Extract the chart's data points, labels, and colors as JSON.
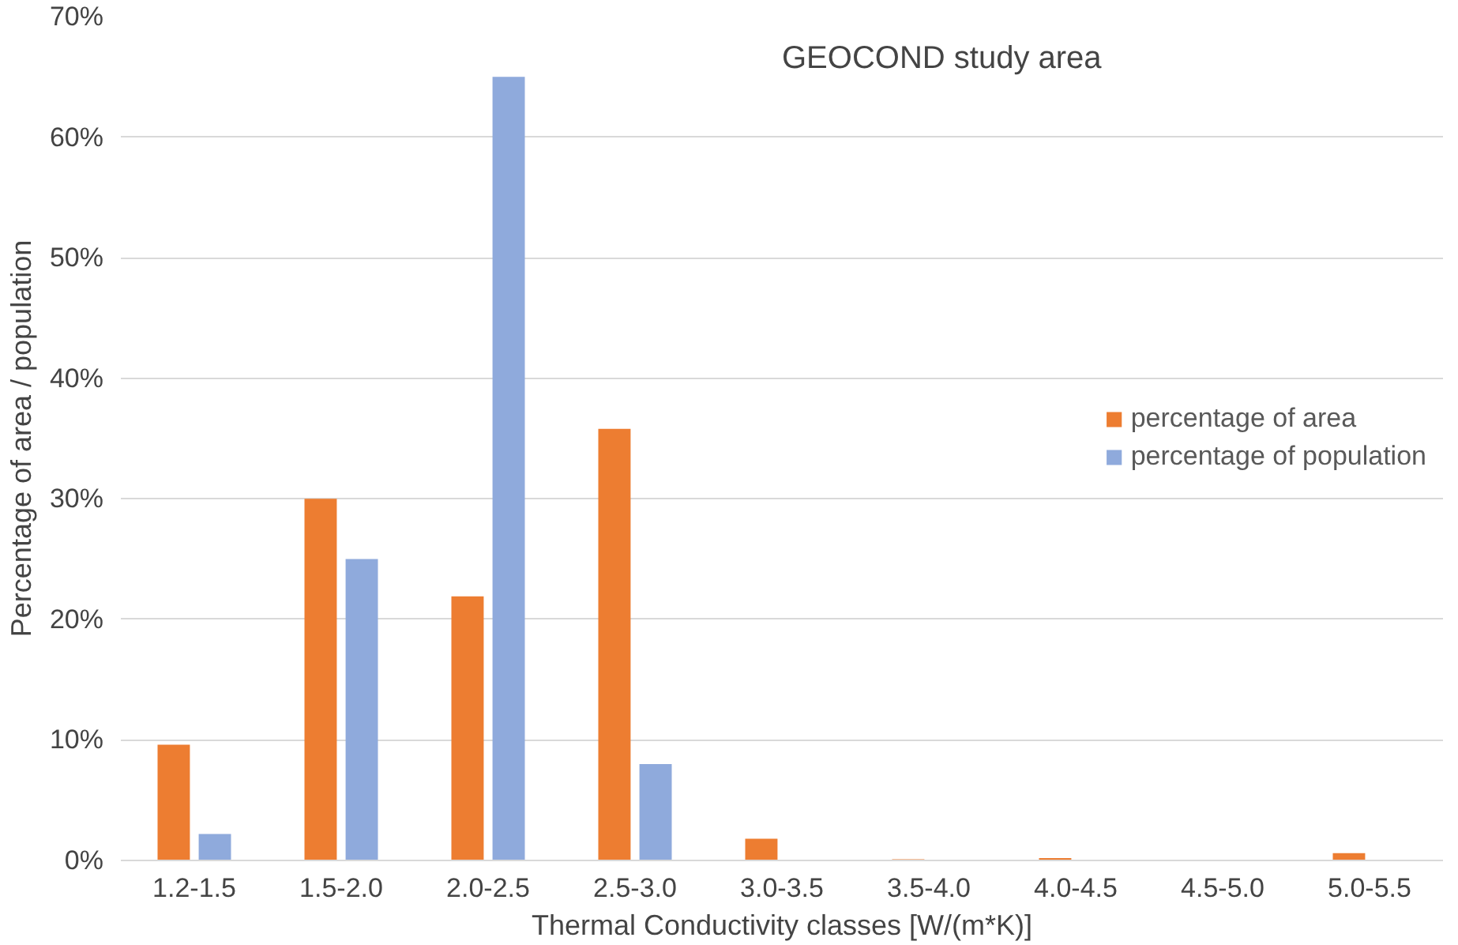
{
  "chart_data": {
    "type": "bar",
    "xlabel": "Thermal Conductivity classes [W/(m*K)]",
    "ylabel": "Percentage of area / population",
    "annotations": [
      "GEOCOND study area"
    ],
    "categories": [
      "1.2-1.5",
      "1.5-2.0",
      "2.0-2.5",
      "2.5-3.0",
      "3.0-3.5",
      "3.5-4.0",
      "4.0-4.5",
      "4.5-5.0",
      "5.0-5.5"
    ],
    "series": [
      {
        "name": "percentage of area",
        "color": "#ed7d31",
        "values": [
          9.6,
          30,
          21.9,
          35.8,
          1.8,
          0.1,
          0.2,
          0,
          0.6
        ]
      },
      {
        "name": "percentage of population",
        "color": "#8faadc",
        "values": [
          2.2,
          25,
          65,
          8,
          0,
          0,
          0,
          0,
          0
        ]
      }
    ],
    "ylim": [
      0,
      70
    ],
    "yticks": [
      {
        "value": 0,
        "label": "0%"
      },
      {
        "value": 10,
        "label": "10%"
      },
      {
        "value": 20,
        "label": "20%"
      },
      {
        "value": 30,
        "label": "30%"
      },
      {
        "value": 40,
        "label": "40%"
      },
      {
        "value": 50,
        "label": "50%"
      },
      {
        "value": 60,
        "label": "60%"
      },
      {
        "value": 70,
        "label": "70%"
      }
    ],
    "grid": "y",
    "legend": "right"
  }
}
